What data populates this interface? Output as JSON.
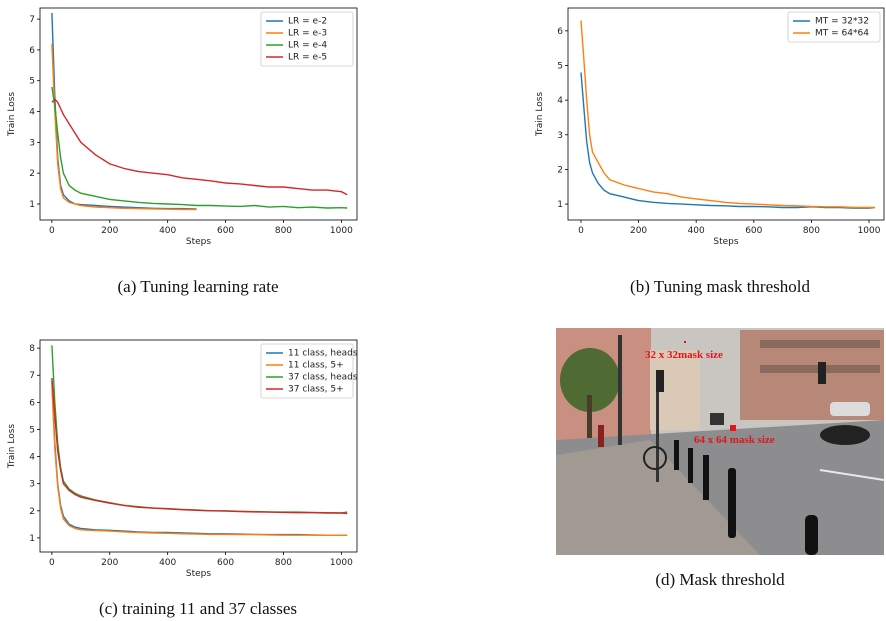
{
  "chart_data": [
    {
      "type": "line",
      "caption": "(a) Tuning learning rate",
      "xlabel": "Steps",
      "ylabel": "Train Loss",
      "x": [
        0,
        10,
        20,
        30,
        40,
        60,
        80,
        100,
        150,
        200,
        250,
        300,
        350,
        400,
        450,
        500,
        550,
        600,
        650,
        700,
        750,
        800,
        850,
        900,
        950,
        1000,
        1020
      ],
      "xlim": [
        -41,
        1054
      ],
      "xticks": [
        0,
        200,
        400,
        600,
        800,
        1000
      ],
      "ylim": [
        0.48,
        7.36
      ],
      "yticks": [
        1,
        2,
        3,
        4,
        5,
        6,
        7
      ],
      "legend": "upper right",
      "series": [
        {
          "name": "LR = e-2",
          "color": "#1f77b4",
          "values": [
            7.2,
            4.5,
            2.5,
            1.6,
            1.3,
            1.1,
            1.0,
            0.98,
            0.95,
            0.92,
            0.9,
            0.88,
            0.86,
            0.85,
            0.85,
            0.84,
            null,
            null,
            null,
            null,
            null,
            null,
            null,
            null,
            null,
            null,
            null
          ]
        },
        {
          "name": "LR = e-3",
          "color": "#ff7f0e",
          "values": [
            6.2,
            4.0,
            2.3,
            1.5,
            1.2,
            1.05,
            1.0,
            0.95,
            0.9,
            0.88,
            0.86,
            0.85,
            0.84,
            0.83,
            0.82,
            0.82,
            null,
            null,
            null,
            null,
            null,
            null,
            null,
            null,
            null,
            null,
            null
          ]
        },
        {
          "name": "LR = e-4",
          "color": "#2ca02c",
          "values": [
            4.8,
            4.2,
            3.3,
            2.5,
            2.0,
            1.6,
            1.45,
            1.35,
            1.25,
            1.15,
            1.1,
            1.05,
            1.02,
            1.0,
            0.98,
            0.95,
            0.95,
            0.93,
            0.92,
            0.95,
            0.9,
            0.92,
            0.88,
            0.9,
            0.87,
            0.88,
            0.87
          ]
        },
        {
          "name": "LR = e-5",
          "color": "#d62728",
          "values": [
            4.3,
            4.4,
            4.3,
            4.1,
            3.9,
            3.6,
            3.3,
            3.0,
            2.6,
            2.3,
            2.15,
            2.05,
            2.0,
            1.95,
            1.85,
            1.8,
            1.75,
            1.68,
            1.65,
            1.6,
            1.55,
            1.55,
            1.5,
            1.45,
            1.45,
            1.4,
            1.3
          ]
        }
      ]
    },
    {
      "type": "line",
      "caption": "(b) Tuning mask threshold",
      "xlabel": "Steps",
      "ylabel": "Train Loss",
      "x": [
        0,
        10,
        20,
        30,
        40,
        60,
        80,
        100,
        150,
        200,
        250,
        300,
        350,
        400,
        450,
        500,
        550,
        600,
        650,
        700,
        750,
        800,
        850,
        900,
        950,
        1000,
        1020
      ],
      "xlim": [
        -45,
        1052
      ],
      "xticks": [
        0,
        200,
        400,
        600,
        800,
        1000
      ],
      "ylim": [
        0.54,
        6.66
      ],
      "yticks": [
        1,
        2,
        3,
        4,
        5,
        6
      ],
      "legend": "upper right",
      "series": [
        {
          "name": "MT = 32*32",
          "color": "#1f77b4",
          "values": [
            4.8,
            3.8,
            2.8,
            2.2,
            1.9,
            1.6,
            1.4,
            1.3,
            1.2,
            1.1,
            1.05,
            1.02,
            1.0,
            0.98,
            0.96,
            0.95,
            0.93,
            0.93,
            0.92,
            0.9,
            0.9,
            0.92,
            0.9,
            0.9,
            0.88,
            0.88,
            0.9
          ]
        },
        {
          "name": "MT = 64*64",
          "color": "#ff7f0e",
          "values": [
            6.3,
            5.2,
            4.0,
            3.0,
            2.5,
            2.2,
            1.9,
            1.7,
            1.55,
            1.45,
            1.35,
            1.3,
            1.2,
            1.15,
            1.1,
            1.05,
            1.02,
            1.0,
            0.98,
            0.96,
            0.95,
            0.93,
            0.92,
            0.92,
            0.9,
            0.9,
            0.9
          ]
        }
      ]
    },
    {
      "type": "line",
      "caption": "(c) training 11 and 37 classes",
      "xlabel": "Steps",
      "ylabel": "Train Loss",
      "x": [
        0,
        10,
        20,
        30,
        40,
        60,
        80,
        100,
        150,
        200,
        250,
        300,
        350,
        400,
        450,
        500,
        550,
        600,
        650,
        700,
        750,
        800,
        850,
        900,
        950,
        1000,
        1020
      ],
      "xlim": [
        -41,
        1054
      ],
      "xticks": [
        0,
        200,
        400,
        600,
        800,
        1000
      ],
      "ylim": [
        0.48,
        8.3
      ],
      "yticks": [
        1,
        2,
        3,
        4,
        5,
        6,
        7,
        8
      ],
      "legend": "upper right",
      "series": [
        {
          "name": "11 class, heads",
          "color": "#1f77b4",
          "values": [
            6.8,
            4.5,
            3.0,
            2.2,
            1.8,
            1.5,
            1.4,
            1.35,
            1.3,
            1.28,
            1.25,
            1.22,
            1.2,
            1.2,
            1.18,
            1.17,
            1.15,
            1.15,
            1.14,
            1.13,
            1.12,
            1.12,
            1.12,
            1.11,
            1.1,
            1.1,
            1.1
          ]
        },
        {
          "name": "11 class, 5+",
          "color": "#ff7f0e",
          "values": [
            6.6,
            4.3,
            2.9,
            2.1,
            1.7,
            1.45,
            1.35,
            1.3,
            1.27,
            1.25,
            1.22,
            1.2,
            1.18,
            1.17,
            1.15,
            1.14,
            1.13,
            1.13,
            1.12,
            1.12,
            1.11,
            1.1,
            1.1,
            1.1,
            1.1,
            1.1,
            1.1
          ]
        },
        {
          "name": "37 class, heads",
          "color": "#2ca02c",
          "values": [
            8.1,
            6.0,
            4.5,
            3.6,
            3.1,
            2.8,
            2.65,
            2.55,
            2.4,
            2.3,
            2.2,
            2.15,
            2.1,
            2.08,
            2.05,
            2.03,
            2.0,
            2.0,
            1.98,
            1.97,
            1.96,
            1.95,
            1.95,
            1.94,
            1.93,
            1.92,
            1.95
          ]
        },
        {
          "name": "37 class, 5+",
          "color": "#d62728",
          "values": [
            6.9,
            5.5,
            4.2,
            3.5,
            3.0,
            2.75,
            2.6,
            2.5,
            2.38,
            2.28,
            2.2,
            2.13,
            2.1,
            2.07,
            2.04,
            2.02,
            2.0,
            1.99,
            1.97,
            1.96,
            1.95,
            1.94,
            1.93,
            1.93,
            1.92,
            1.92,
            1.9
          ]
        }
      ]
    }
  ],
  "photo": {
    "labels": [
      "32 x 32mask size",
      "64 x 64 mask size"
    ],
    "caption": "(d) Mask threshold"
  }
}
